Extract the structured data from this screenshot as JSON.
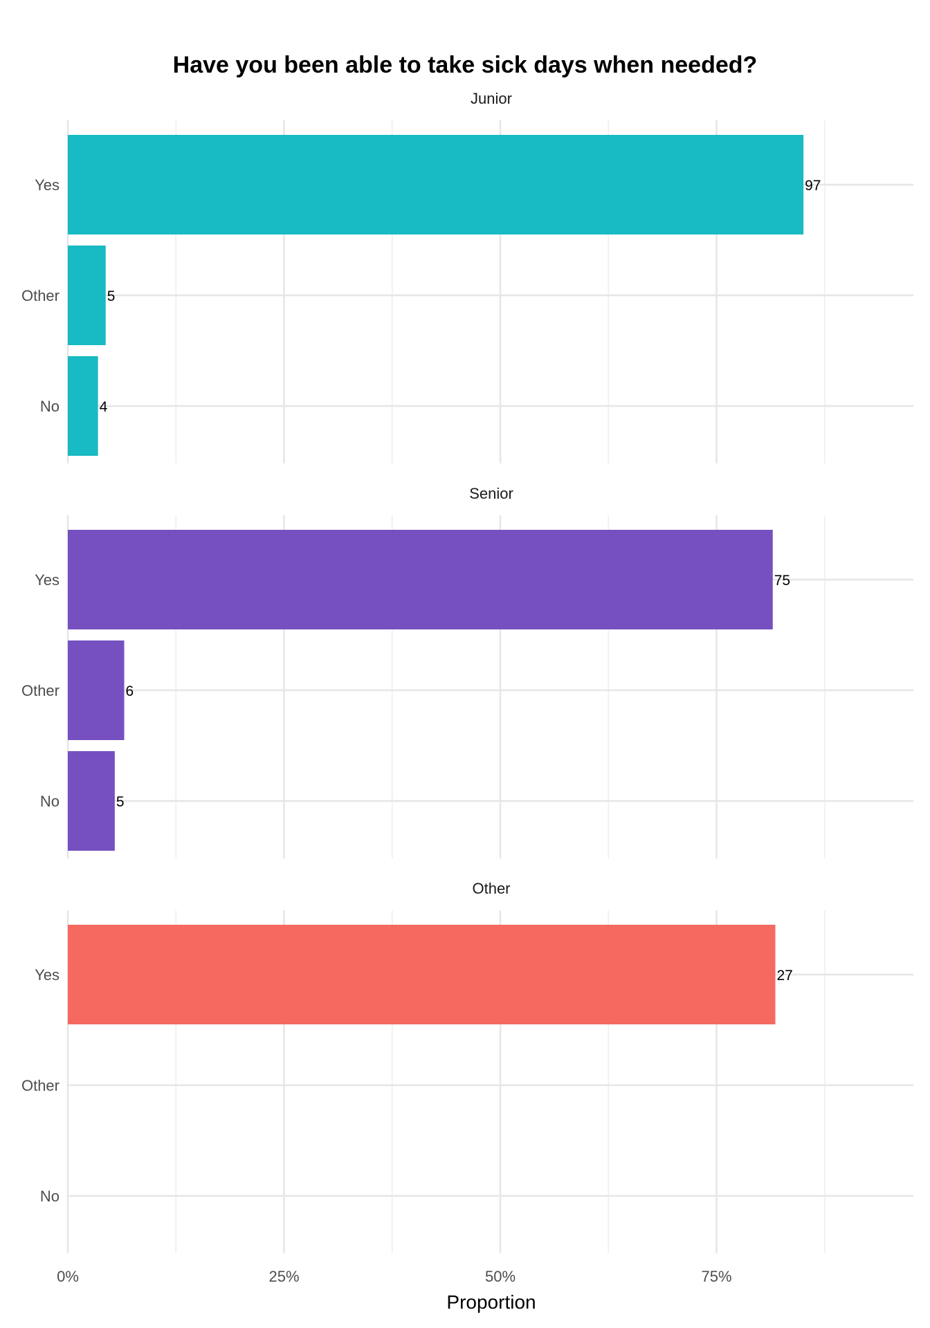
{
  "chart_data": {
    "type": "bar",
    "orientation": "horizontal",
    "title": "Have you been able to take sick days when needed?",
    "xlabel": "Proportion",
    "ylabel": "",
    "xlim": [
      0,
      0.98
    ],
    "x_ticks": [
      0,
      0.25,
      0.5,
      0.75
    ],
    "x_tick_labels": [
      "0%",
      "25%",
      "50%",
      "75%"
    ],
    "categories": [
      "Yes",
      "Other",
      "No"
    ],
    "grid": true,
    "legend": "none",
    "panels": [
      {
        "name": "Junior",
        "color": "#18BAC3",
        "bars": [
          {
            "category": "Yes",
            "proportion": 0.8505,
            "count": "97"
          },
          {
            "category": "Other",
            "proportion": 0.0438,
            "count": "5"
          },
          {
            "category": "No",
            "proportion": 0.0349,
            "count": "4"
          }
        ]
      },
      {
        "name": "Senior",
        "color": "#7650C0",
        "bars": [
          {
            "category": "Yes",
            "proportion": 0.815,
            "count": "75"
          },
          {
            "category": "Other",
            "proportion": 0.0652,
            "count": "6"
          },
          {
            "category": "No",
            "proportion": 0.0543,
            "count": "5"
          }
        ]
      },
      {
        "name": "Other",
        "color": "#F56960",
        "bars": [
          {
            "category": "Yes",
            "proportion": 0.818,
            "count": "27"
          }
        ]
      }
    ]
  }
}
